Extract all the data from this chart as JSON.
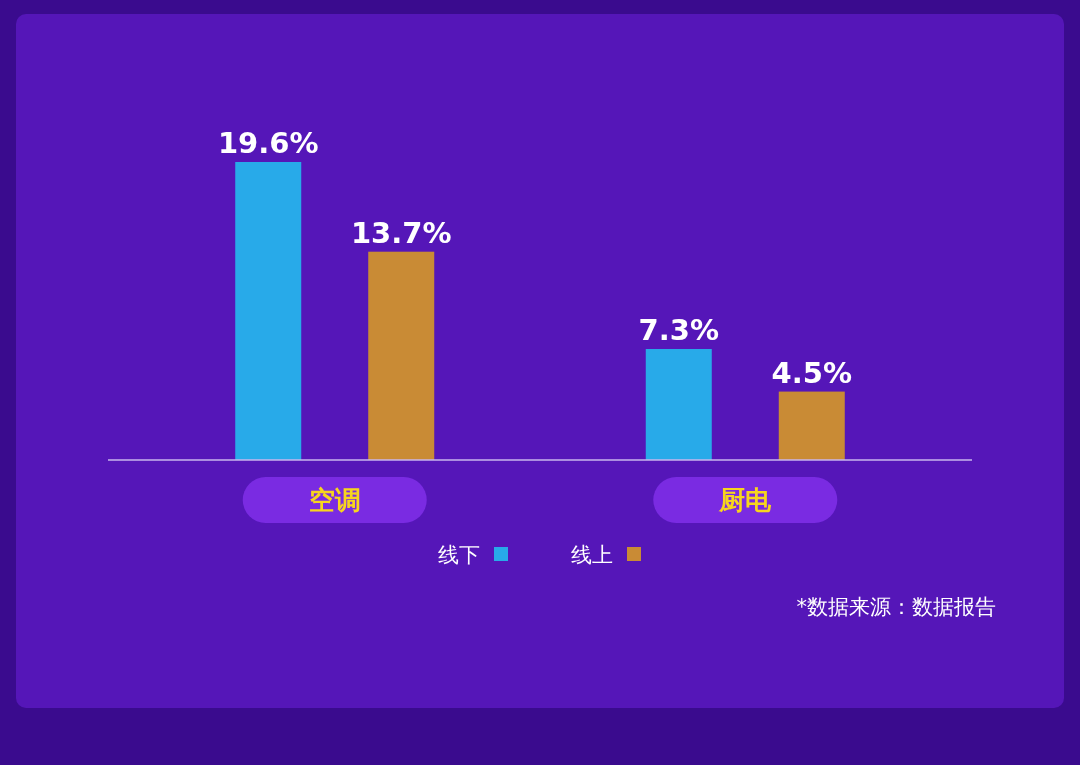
{
  "chart_data": {
    "type": "bar",
    "categories": [
      "空调",
      "厨电"
    ],
    "series": [
      {
        "name": "线下",
        "color": "#28aae9",
        "values": [
          19.6,
          7.3
        ],
        "value_labels": [
          "19.6%",
          "7.3%"
        ]
      },
      {
        "name": "线上",
        "color": "#c98b35",
        "values": [
          13.7,
          4.5
        ],
        "value_labels": [
          "13.7%",
          "4.5%"
        ]
      }
    ],
    "legend": "bottom",
    "annotations": [
      "*数据来源：数据报告"
    ]
  }
}
